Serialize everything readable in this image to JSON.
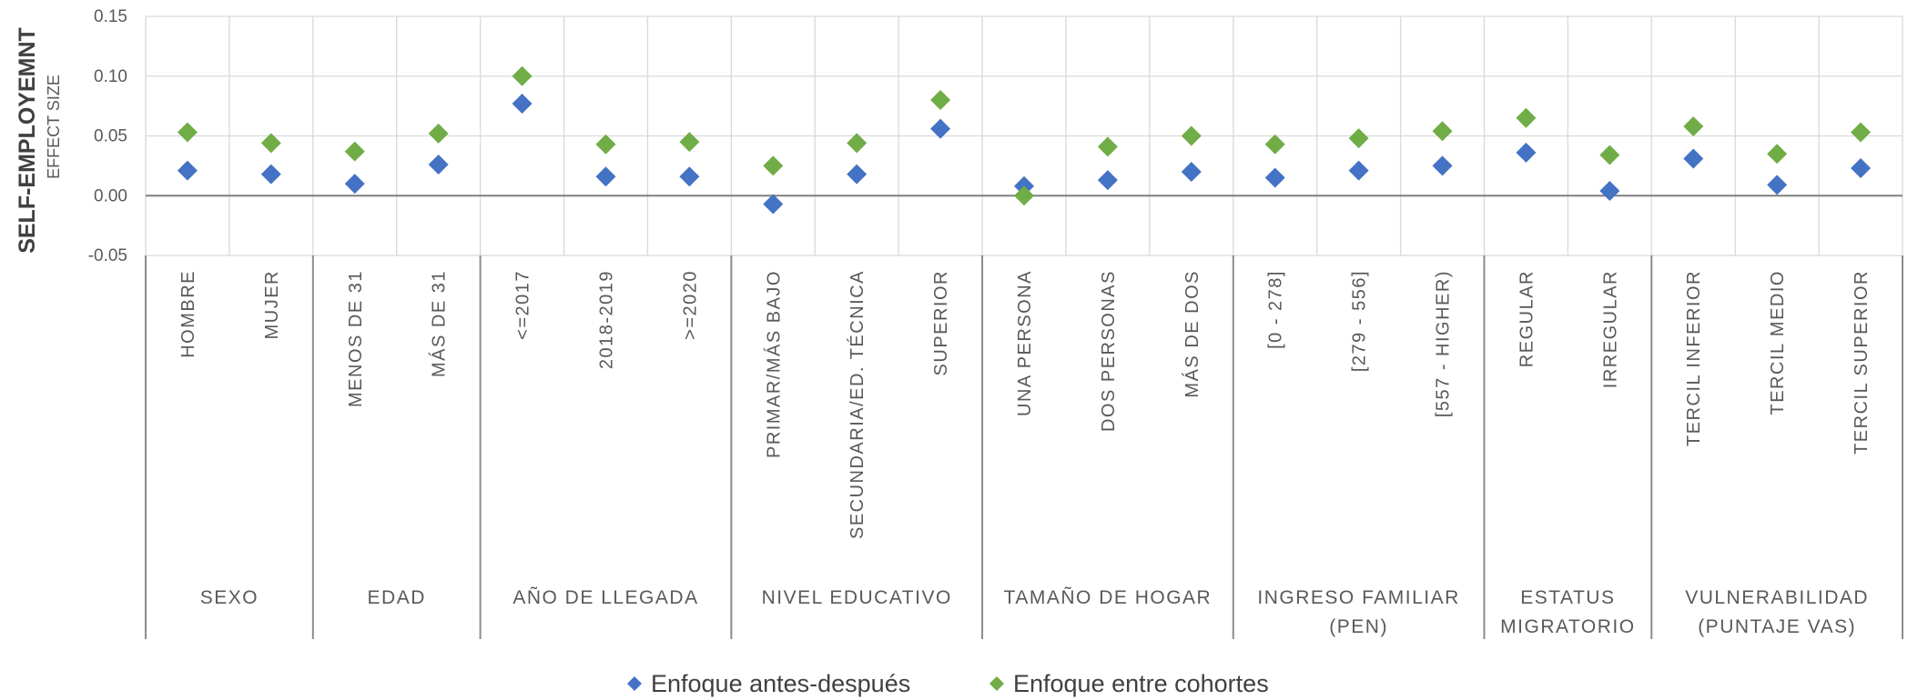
{
  "chart_data": {
    "type": "scatter",
    "ylabel": "SELF-EMPLOYEMNT",
    "ysublabel": "EFFECT SIZE",
    "ylim": [
      -0.05,
      0.15
    ],
    "yticks": [
      "0.15",
      "0.10",
      "0.05",
      "0.00",
      "-0.05"
    ],
    "yticks_values": [
      0.15,
      0.1,
      0.05,
      0.0,
      -0.05
    ],
    "grid": true,
    "legend_position": "bottom",
    "groups": [
      {
        "label": [
          "SEXO"
        ],
        "categories": [
          "HOMBRE",
          "MUJER"
        ]
      },
      {
        "label": [
          "EDAD"
        ],
        "categories": [
          "MENOS DE 31",
          "MÁS DE 31"
        ]
      },
      {
        "label": [
          "AÑO DE LLEGADA"
        ],
        "categories": [
          "<=2017",
          "2018-2019",
          ">=2020"
        ]
      },
      {
        "label": [
          "NIVEL EDUCATIVO"
        ],
        "categories": [
          "PRIMAR/MÁS BAJO",
          "SECUNDARIA/ED. TÉCNICA",
          "SUPERIOR"
        ]
      },
      {
        "label": [
          "TAMAÑO DE HOGAR"
        ],
        "categories": [
          "UNA PERSONA",
          "DOS PERSONAS",
          "MÁS DE DOS"
        ]
      },
      {
        "label": [
          "INGRESO FAMILIAR",
          "(PEN)"
        ],
        "categories": [
          "[0 - 278]",
          "[279 - 556]",
          "[557 - HIGHER)"
        ]
      },
      {
        "label": [
          "ESTATUS",
          "MIGRATORIO"
        ],
        "categories": [
          "REGULAR",
          "IRREGULAR"
        ]
      },
      {
        "label": [
          "VULNERABILIDAD",
          "(PUNTAJE VAS)"
        ],
        "categories": [
          "TERCIL INFERIOR",
          "TERCIL MEDIO",
          "TERCIL SUPERIOR"
        ]
      }
    ],
    "series": [
      {
        "name": "Enfoque antes-después",
        "color": "#4472C4",
        "values": [
          0.021,
          0.018,
          0.01,
          0.026,
          0.077,
          0.016,
          0.016,
          -0.007,
          0.018,
          0.056,
          0.008,
          0.013,
          0.02,
          0.015,
          0.021,
          0.025,
          0.036,
          0.004,
          0.031,
          0.009,
          0.023
        ]
      },
      {
        "name": "Enfoque entre cohortes",
        "color": "#70AD47",
        "values": [
          0.053,
          0.044,
          0.037,
          0.052,
          0.1,
          0.043,
          0.045,
          0.025,
          0.044,
          0.08,
          0.0,
          0.041,
          0.05,
          0.043,
          0.048,
          0.054,
          0.065,
          0.034,
          0.058,
          0.035,
          0.053
        ]
      }
    ]
  }
}
